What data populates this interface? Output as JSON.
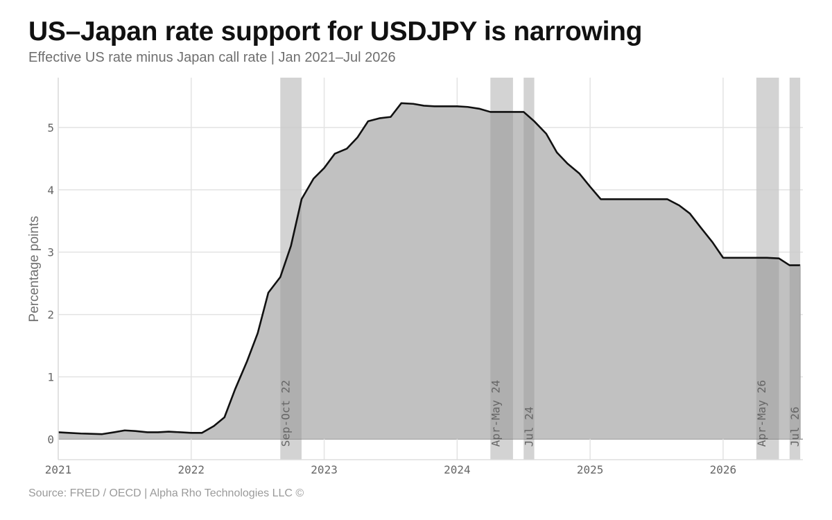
{
  "header": {
    "title": "US–Japan rate support for USDJPY is narrowing",
    "subtitle": "Effective US rate minus Japan call rate | Jan 2021–Jul 2026"
  },
  "footer": {
    "source": "Source: FRED / OECD | Alpha Rho Technologies LLC ©"
  },
  "colors": {
    "line": "#111111",
    "area": "#c1c1c1",
    "band": "#e8e8e8",
    "grid": "#e3e3e3",
    "zero_line": "#8a8a8a"
  },
  "chart_data": {
    "type": "area",
    "title": "US–Japan rate support for USDJPY is narrowing",
    "subtitle": "Effective US rate minus Japan call rate | Jan 2021–Jul 2026",
    "xlabel": "",
    "ylabel": "Percentage points",
    "xlim": [
      2021.0,
      2026.6
    ],
    "ylim": [
      -0.33,
      5.8
    ],
    "grid": true,
    "x_ticks": [
      {
        "value": 2021,
        "label": "2021"
      },
      {
        "value": 2022,
        "label": "2022"
      },
      {
        "value": 2023,
        "label": "2023"
      },
      {
        "value": 2024,
        "label": "2024"
      },
      {
        "value": 2025,
        "label": "2025"
      },
      {
        "value": 2026,
        "label": "2026"
      }
    ],
    "y_ticks": [
      {
        "value": 0,
        "label": "0"
      },
      {
        "value": 1,
        "label": "1"
      },
      {
        "value": 2,
        "label": "2"
      },
      {
        "value": 3,
        "label": "3"
      },
      {
        "value": 4,
        "label": "4"
      },
      {
        "value": 5,
        "label": "5"
      }
    ],
    "bands": [
      {
        "start": 2022.67,
        "end": 2022.83,
        "label": "Sep-Oct 22"
      },
      {
        "start": 2024.25,
        "end": 2024.42,
        "label": "Apr-May 24"
      },
      {
        "start": 2024.5,
        "end": 2024.58,
        "label": "Jul 24"
      },
      {
        "start": 2026.25,
        "end": 2026.42,
        "label": "Apr-May 26"
      },
      {
        "start": 2026.5,
        "end": 2026.58,
        "label": "Jul 26"
      }
    ],
    "series": [
      {
        "x": [
          2021.0,
          2021.08,
          2021.17,
          2021.25,
          2021.33,
          2021.42,
          2021.5,
          2021.58,
          2021.67,
          2021.75,
          2021.83,
          2021.92,
          2022.0,
          2022.08,
          2022.17,
          2022.25,
          2022.33,
          2022.42,
          2022.5,
          2022.58,
          2022.67,
          2022.75,
          2022.83,
          2022.92,
          2023.0,
          2023.08,
          2023.17,
          2023.25,
          2023.33,
          2023.42,
          2023.5,
          2023.58,
          2023.67,
          2023.75,
          2023.83,
          2023.92,
          2024.0,
          2024.08,
          2024.17,
          2024.25,
          2024.33,
          2024.42,
          2024.5,
          2024.58,
          2024.67,
          2024.75,
          2024.83,
          2024.92,
          2025.0,
          2025.08,
          2025.17,
          2025.25,
          2025.33,
          2025.42,
          2025.5,
          2025.58,
          2025.67,
          2025.75,
          2025.83,
          2025.92,
          2026.0,
          2026.08,
          2026.17,
          2026.25,
          2026.33,
          2026.42,
          2026.5,
          2026.58
        ],
        "values": [
          0.11,
          0.1,
          0.09,
          0.085,
          0.08,
          0.11,
          0.14,
          0.13,
          0.11,
          0.11,
          0.12,
          0.11,
          0.1,
          0.1,
          0.21,
          0.35,
          0.8,
          1.25,
          1.7,
          2.35,
          2.6,
          3.1,
          3.85,
          4.18,
          4.35,
          4.58,
          4.66,
          4.84,
          5.1,
          5.15,
          5.17,
          5.39,
          5.38,
          5.35,
          5.34,
          5.34,
          5.34,
          5.33,
          5.3,
          5.25,
          5.25,
          5.25,
          5.25,
          5.1,
          4.9,
          4.6,
          4.42,
          4.26,
          4.05,
          3.85,
          3.85,
          3.85,
          3.85,
          3.85,
          3.85,
          3.85,
          3.75,
          3.62,
          3.4,
          3.16,
          2.91,
          2.91,
          2.91,
          2.91,
          2.91,
          2.9,
          2.79,
          2.79
        ]
      }
    ]
  }
}
